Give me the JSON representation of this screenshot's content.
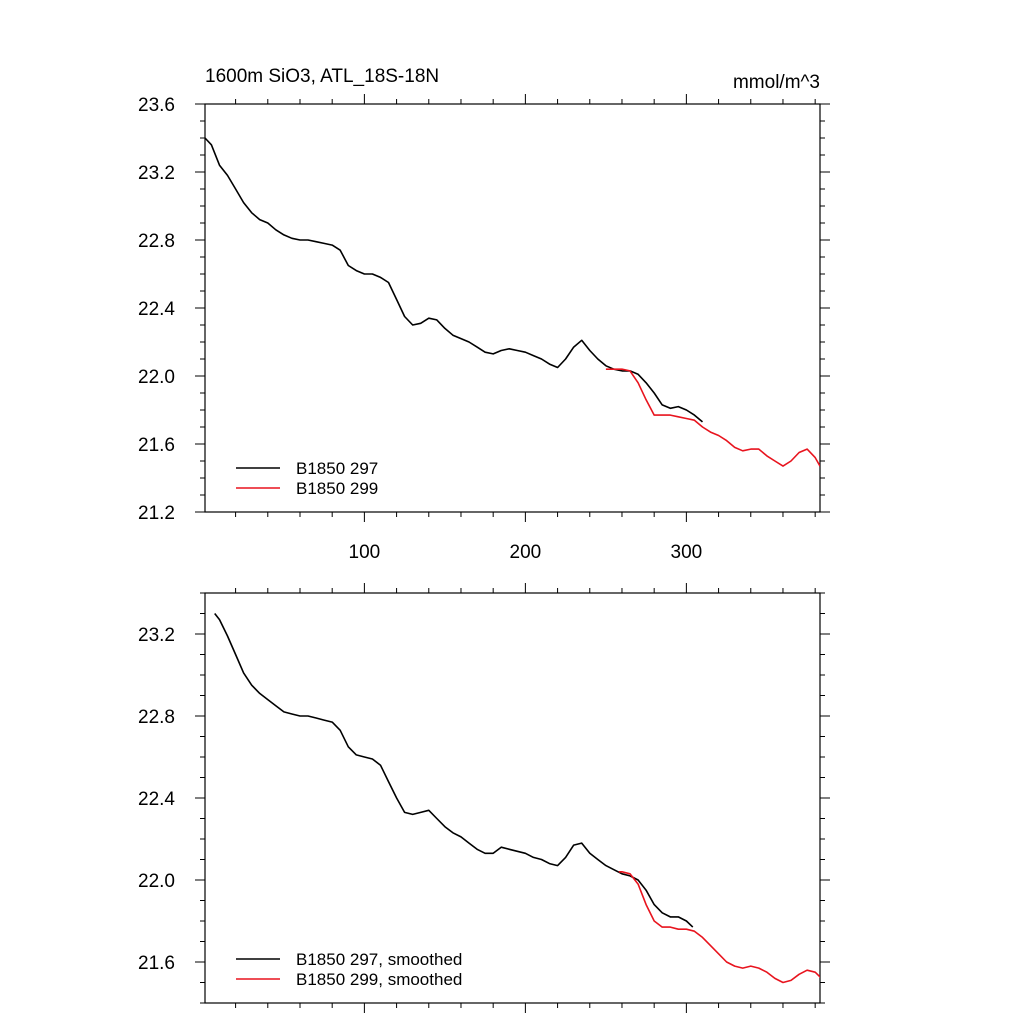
{
  "chart_data": [
    {
      "type": "line",
      "title": "1600m SiO3, ATL_18S-18N",
      "units": "mmol/m^3",
      "xlim": [
        1,
        383
      ],
      "ylim": [
        21.2,
        23.6
      ],
      "x_ticks": [
        100,
        200,
        300
      ],
      "x_tick_labels": [
        "100",
        "200",
        "300"
      ],
      "y_ticks": [
        21.2,
        21.6,
        22.0,
        22.4,
        22.8,
        23.2,
        23.6
      ],
      "y_tick_labels": [
        "21.2",
        "21.6",
        "22.0",
        "22.4",
        "22.8",
        "23.2",
        "23.6"
      ],
      "legend": "bottom-left",
      "series": [
        {
          "name": "B1850 297",
          "color": "#000000",
          "x": [
            1,
            5,
            10,
            15,
            20,
            25,
            30,
            35,
            40,
            45,
            50,
            55,
            60,
            65,
            70,
            75,
            80,
            85,
            90,
            95,
            100,
            105,
            110,
            115,
            120,
            125,
            130,
            135,
            140,
            145,
            150,
            155,
            160,
            165,
            170,
            175,
            180,
            185,
            190,
            195,
            200,
            205,
            210,
            215,
            220,
            225,
            230,
            235,
            240,
            245,
            250,
            255,
            260,
            265,
            270,
            275,
            280,
            285,
            290,
            295,
            300,
            305,
            310
          ],
          "values": [
            23.4,
            23.36,
            23.24,
            23.18,
            23.1,
            23.02,
            22.96,
            22.92,
            22.9,
            22.86,
            22.83,
            22.81,
            22.8,
            22.8,
            22.79,
            22.78,
            22.77,
            22.74,
            22.65,
            22.62,
            22.6,
            22.6,
            22.58,
            22.55,
            22.45,
            22.35,
            22.3,
            22.31,
            22.34,
            22.33,
            22.28,
            22.24,
            22.22,
            22.2,
            22.17,
            22.14,
            22.13,
            22.15,
            22.16,
            22.15,
            22.14,
            22.12,
            22.1,
            22.07,
            22.05,
            22.1,
            22.17,
            22.21,
            22.15,
            22.1,
            22.06,
            22.04,
            22.03,
            22.03,
            22.01,
            21.96,
            21.9,
            21.83,
            21.81,
            21.82,
            21.8,
            21.77,
            21.73
          ]
        },
        {
          "name": "B1850 299",
          "color": "#e8141e",
          "x": [
            250,
            255,
            260,
            265,
            270,
            275,
            280,
            285,
            290,
            295,
            300,
            305,
            310,
            315,
            320,
            325,
            330,
            335,
            340,
            345,
            350,
            355,
            360,
            365,
            370,
            375,
            380,
            383
          ],
          "values": [
            22.04,
            22.04,
            22.04,
            22.03,
            21.96,
            21.86,
            21.77,
            21.77,
            21.77,
            21.76,
            21.75,
            21.74,
            21.7,
            21.67,
            21.65,
            21.62,
            21.58,
            21.56,
            21.57,
            21.57,
            21.53,
            21.5,
            21.47,
            21.5,
            21.55,
            21.57,
            21.52,
            21.47
          ]
        }
      ]
    },
    {
      "type": "line",
      "xlim": [
        1,
        383
      ],
      "ylim": [
        21.4,
        23.4
      ],
      "y_ticks": [
        21.6,
        22.0,
        22.4,
        22.8,
        23.2
      ],
      "y_tick_labels": [
        "21.6",
        "22.0",
        "22.4",
        "22.8",
        "23.2"
      ],
      "legend": "bottom-left",
      "series": [
        {
          "name": "B1850 297, smoothed",
          "color": "#000000",
          "x": [
            7,
            10,
            15,
            20,
            25,
            30,
            35,
            40,
            45,
            50,
            55,
            60,
            65,
            70,
            75,
            80,
            85,
            90,
            95,
            100,
            105,
            110,
            115,
            120,
            125,
            130,
            135,
            140,
            145,
            150,
            155,
            160,
            165,
            170,
            175,
            180,
            185,
            190,
            195,
            200,
            205,
            210,
            215,
            220,
            225,
            230,
            235,
            240,
            245,
            250,
            255,
            260,
            265,
            270,
            275,
            280,
            285,
            290,
            295,
            300,
            304
          ],
          "values": [
            23.3,
            23.27,
            23.19,
            23.1,
            23.01,
            22.95,
            22.91,
            22.88,
            22.85,
            22.82,
            22.81,
            22.8,
            22.8,
            22.79,
            22.78,
            22.77,
            22.73,
            22.65,
            22.61,
            22.6,
            22.59,
            22.56,
            22.48,
            22.4,
            22.33,
            22.32,
            22.33,
            22.34,
            22.3,
            22.26,
            22.23,
            22.21,
            22.18,
            22.15,
            22.13,
            22.13,
            22.16,
            22.15,
            22.14,
            22.13,
            22.11,
            22.1,
            22.08,
            22.07,
            22.11,
            22.17,
            22.18,
            22.13,
            22.1,
            22.07,
            22.05,
            22.03,
            22.02,
            22.0,
            21.95,
            21.88,
            21.84,
            21.82,
            21.82,
            21.8,
            21.77
          ]
        },
        {
          "name": "B1850 299, smoothed",
          "color": "#e8141e",
          "x": [
            258,
            260,
            265,
            270,
            275,
            280,
            285,
            290,
            295,
            300,
            305,
            310,
            315,
            320,
            325,
            330,
            335,
            340,
            345,
            350,
            355,
            360,
            365,
            370,
            375,
            380,
            384
          ],
          "values": [
            22.04,
            22.04,
            22.03,
            21.98,
            21.88,
            21.8,
            21.77,
            21.77,
            21.76,
            21.76,
            21.75,
            21.72,
            21.68,
            21.64,
            21.6,
            21.58,
            21.57,
            21.58,
            21.57,
            21.55,
            21.52,
            21.5,
            21.51,
            21.54,
            21.56,
            21.55,
            21.52
          ]
        }
      ]
    }
  ]
}
